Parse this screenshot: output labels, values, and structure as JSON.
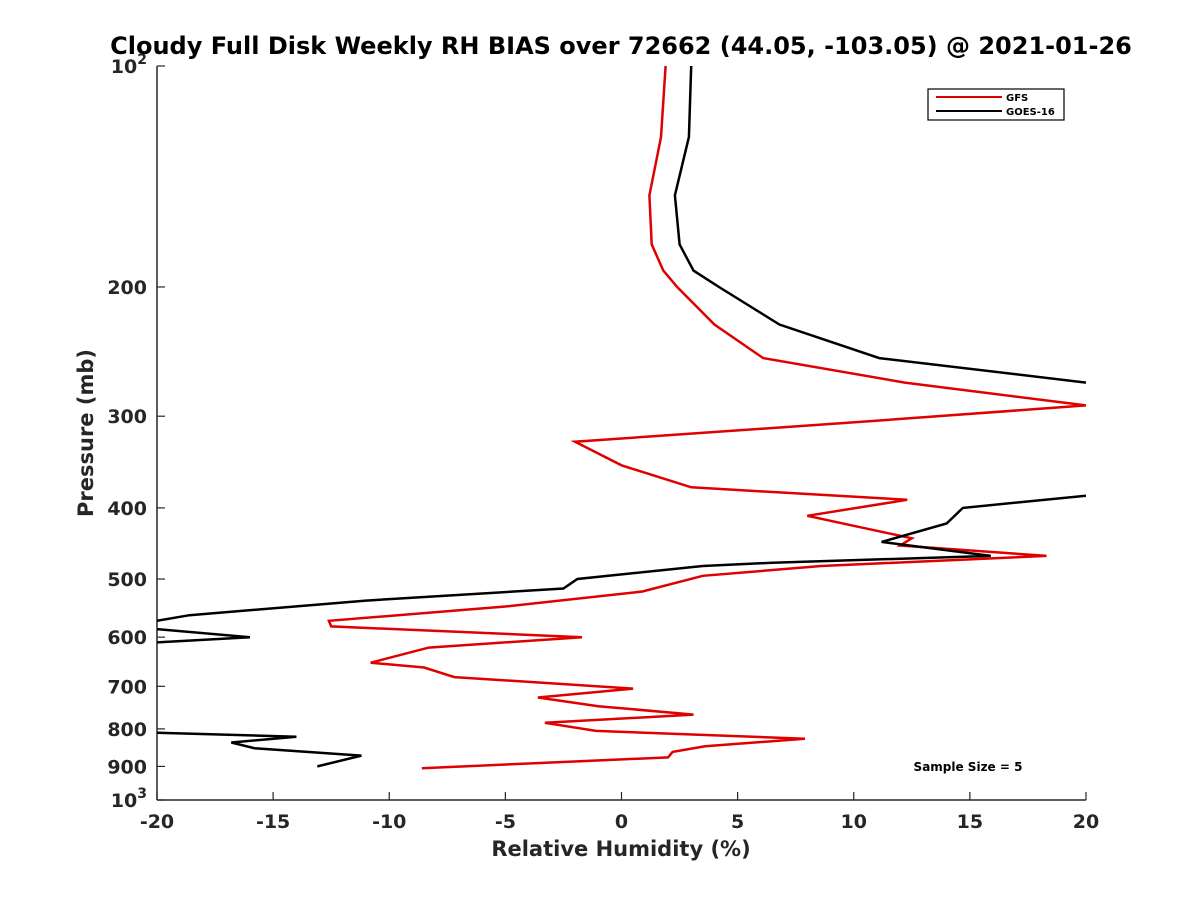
{
  "chart_data": {
    "type": "line",
    "title": "Cloudy Full Disk Weekly RH BIAS over 72662 (44.05, -103.05) @ 2021-01-26",
    "xlabel": "Relative Humidity (%)",
    "ylabel": "Pressure (mb)",
    "xlim": [
      -20,
      20
    ],
    "ylim": [
      100,
      1000
    ],
    "y_scale": "log",
    "y_reversed": true,
    "grid": false,
    "legend_position": "top-right",
    "annotation": "Sample Size = 5",
    "x_ticks": [
      -20,
      -15,
      -10,
      -5,
      0,
      5,
      10,
      15,
      20
    ],
    "x_tick_labels": [
      "-20",
      "-15",
      "-10",
      "-5",
      "0",
      "5",
      "10",
      "15",
      "20"
    ],
    "y_ticks": [
      100,
      200,
      300,
      400,
      500,
      600,
      700,
      800,
      900,
      1000
    ],
    "y_tick_labels": [
      {
        "base": "10",
        "exp": "2"
      },
      {
        "base": "200",
        "exp": ""
      },
      {
        "base": "300",
        "exp": ""
      },
      {
        "base": "400",
        "exp": ""
      },
      {
        "base": "500",
        "exp": ""
      },
      {
        "base": "600",
        "exp": ""
      },
      {
        "base": "700",
        "exp": ""
      },
      {
        "base": "800",
        "exp": ""
      },
      {
        "base": "900",
        "exp": ""
      },
      {
        "base": "10",
        "exp": "3"
      }
    ],
    "series": [
      {
        "name": "GFS",
        "color": "#e00000",
        "points": [
          [
            1.9,
            100
          ],
          [
            1.7,
            125
          ],
          [
            1.2,
            150
          ],
          [
            1.3,
            175
          ],
          [
            1.8,
            190
          ],
          [
            2.4,
            200
          ],
          [
            4.0,
            225
          ],
          [
            6.1,
            250
          ],
          [
            12.2,
            270
          ],
          [
            20,
            290
          ],
          [
            10.5,
            305
          ],
          [
            -2.0,
            325
          ],
          [
            0.0,
            350
          ],
          [
            3.0,
            375
          ],
          [
            12.3,
            390
          ],
          [
            8.0,
            410
          ],
          [
            12.5,
            440
          ],
          [
            12.0,
            450
          ],
          [
            18.3,
            465
          ],
          [
            8.6,
            480
          ],
          [
            3.5,
            495
          ],
          [
            0.9,
            520
          ],
          [
            -5.0,
            545
          ],
          [
            -12.6,
            570
          ],
          [
            -12.5,
            580
          ],
          [
            -1.7,
            600
          ],
          [
            -8.3,
            620
          ],
          [
            -10.8,
            650
          ],
          [
            -8.5,
            660
          ],
          [
            -7.2,
            680
          ],
          [
            0.5,
            705
          ],
          [
            -3.6,
            725
          ],
          [
            -1.0,
            745
          ],
          [
            3.1,
            765
          ],
          [
            -3.3,
            785
          ],
          [
            -1.1,
            805
          ],
          [
            7.9,
            825
          ],
          [
            3.6,
            845
          ],
          [
            2.2,
            860
          ],
          [
            2.0,
            875
          ],
          [
            -8.6,
            905
          ]
        ]
      },
      {
        "name": "GOES-16",
        "color": "#000000",
        "points": [
          [
            3.0,
            100
          ],
          [
            2.9,
            125
          ],
          [
            2.3,
            150
          ],
          [
            2.5,
            175
          ],
          [
            3.1,
            190
          ],
          [
            4.2,
            200
          ],
          [
            6.8,
            225
          ],
          [
            11.1,
            250
          ],
          [
            20,
            270
          ],
          [
            null,
            null
          ],
          [
            20,
            385
          ],
          [
            14.7,
            400
          ],
          [
            14.0,
            420
          ],
          [
            11.2,
            445
          ],
          [
            15.9,
            465
          ],
          [
            6.5,
            475
          ],
          [
            3.5,
            480
          ],
          [
            -1.9,
            500
          ],
          [
            -2.5,
            515
          ],
          [
            -11.0,
            535
          ],
          [
            -18.6,
            560
          ],
          [
            -20.0,
            570
          ],
          [
            null,
            null
          ],
          [
            -20.0,
            585
          ],
          [
            -16.0,
            600
          ],
          [
            -20.0,
            610
          ],
          [
            null,
            null
          ],
          [
            -20.0,
            810
          ],
          [
            -14.0,
            820
          ],
          [
            -16.8,
            835
          ],
          [
            -15.8,
            850
          ],
          [
            -11.2,
            870
          ],
          [
            -13.1,
            900
          ]
        ]
      }
    ]
  }
}
